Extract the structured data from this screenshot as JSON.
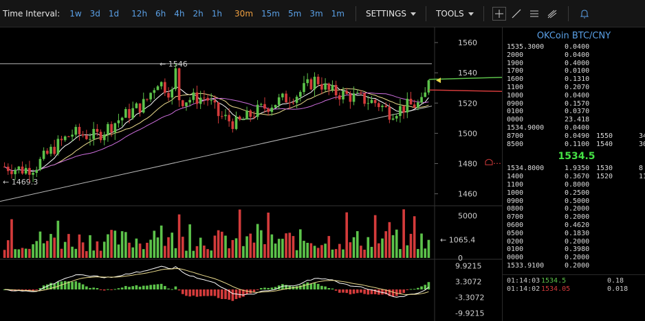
{
  "toolbar": {
    "interval_label": "Time Interval:",
    "intervals_left": [
      "1w",
      "3d",
      "1d"
    ],
    "intervals_hours": [
      "12h",
      "6h",
      "4h",
      "2h",
      "1h"
    ],
    "intervals_mins": [
      "30m",
      "15m",
      "5m",
      "3m",
      "1m"
    ],
    "active_interval": "30m",
    "settings_label": "SETTINGS",
    "tools_label": "TOOLS",
    "icons": [
      "crosshair-icon",
      "line-draw-icon",
      "horizontal-lines-icon",
      "fork-icon",
      "alert-bell-icon"
    ]
  },
  "colors": {
    "up": "#5cc24a",
    "down": "#d43b3b",
    "accent": "#5aa0e6",
    "last_price": "#44e044",
    "marker": "#e8d64a"
  },
  "price_axis": {
    "labels": [
      "1560",
      "1540",
      "1520",
      "1500",
      "1480",
      "1460"
    ]
  },
  "price_annotations": {
    "high": "← 1546",
    "low": "← 1469.3"
  },
  "volume_axis": {
    "labels": [
      "5000",
      "0"
    ],
    "last_volume": "← 1065.4"
  },
  "macd_axis": {
    "labels": [
      "9.9215",
      "3.3072",
      "-3.3072",
      "-9.9215"
    ]
  },
  "orderbook": {
    "title": "OKCoin BTC/CNY",
    "asks": [
      {
        "price": "1535.3000",
        "amount": "0.0400"
      },
      {
        "price": "2000",
        "amount": "0.0400"
      },
      {
        "price": "1900",
        "amount": "0.4000"
      },
      {
        "price": "1700",
        "amount": "0.0100"
      },
      {
        "price": "1600",
        "amount": "0.1310"
      },
      {
        "price": "1100",
        "amount": "0.2070"
      },
      {
        "price": "1000",
        "amount": "0.0400"
      },
      {
        "price": "0900",
        "amount": "0.1570"
      },
      {
        "price": "0100",
        "amount": "0.0370"
      },
      {
        "price": "0000",
        "amount": "23.418"
      },
      {
        "price": "1534.9000",
        "amount": "0.0400"
      },
      {
        "price": "8700",
        "amount": "0.0490",
        "agg_price": "1550",
        "agg_amount": "34"
      },
      {
        "price": "8500",
        "amount": "0.1100",
        "agg_price": "1540",
        "agg_amount": "30"
      }
    ],
    "last_price": "1534.5",
    "bids": [
      {
        "price": "1534.8000",
        "amount": "1.9350",
        "agg_price": "1530",
        "agg_amount": "8"
      },
      {
        "price": "1400",
        "amount": "0.3670",
        "agg_price": "1520",
        "agg_amount": "11"
      },
      {
        "price": "1100",
        "amount": "0.8000"
      },
      {
        "price": "1000",
        "amount": "0.2500"
      },
      {
        "price": "0900",
        "amount": "0.5000"
      },
      {
        "price": "0800",
        "amount": "0.2000"
      },
      {
        "price": "0700",
        "amount": "0.2000"
      },
      {
        "price": "0600",
        "amount": "0.4620"
      },
      {
        "price": "0500",
        "amount": "0.1830"
      },
      {
        "price": "0200",
        "amount": "0.2000"
      },
      {
        "price": "0100",
        "amount": "0.3980"
      },
      {
        "price": "0000",
        "amount": "0.2000"
      },
      {
        "price": "1533.9100",
        "amount": "0.2000"
      }
    ],
    "trades": [
      {
        "time": "01:14:03",
        "price": "1534.5",
        "amount": "0.18",
        "side": "up"
      },
      {
        "time": "01:14:02",
        "price": "1534.05",
        "amount": "0.018",
        "side": "down"
      }
    ]
  },
  "chart_data": {
    "type": "candlestick",
    "price_axis_range": [
      1453,
      1570
    ],
    "support_line": {
      "from": 1455,
      "to": 1518
    },
    "resistance_level": 1546,
    "ask_line_level": 1537,
    "bid_line_level": 1530,
    "last_price_marker": 1535,
    "alert_level": 1481,
    "candles_approx": 120,
    "volume_axis_range": [
      0,
      6000
    ],
    "macd_axis_range": [
      -12,
      12
    ]
  }
}
